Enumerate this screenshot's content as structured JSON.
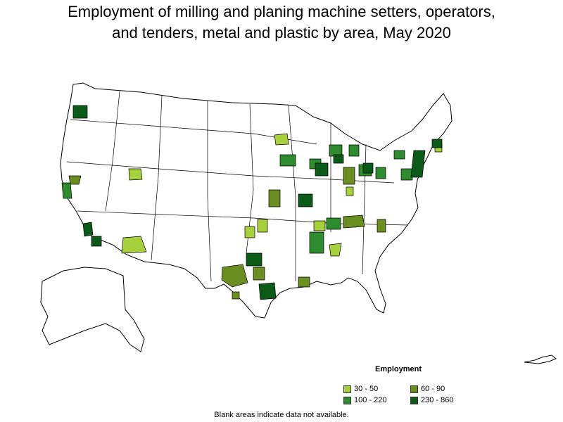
{
  "title_line1": "Employment of milling and planing machine setters, operators,",
  "title_line2": "and tenders, metal and plastic by area, May 2020",
  "legend": {
    "title": "Employment",
    "items": [
      {
        "label": "30 - 50",
        "color": "#a6d13c"
      },
      {
        "label": "60 - 90",
        "color": "#6b8e23"
      },
      {
        "label": "100 - 220",
        "color": "#2e8b2e"
      },
      {
        "label": "230 - 860",
        "color": "#0b5a18"
      }
    ]
  },
  "footnote": "Blank areas indicate data not available.",
  "colors": {
    "no_data": "#ffffff",
    "border": "#000000",
    "c30_50": "#a6d13c",
    "c60_90": "#6b8e23",
    "c100_220": "#2e8b2e",
    "c230_860": "#0b5a18"
  }
}
